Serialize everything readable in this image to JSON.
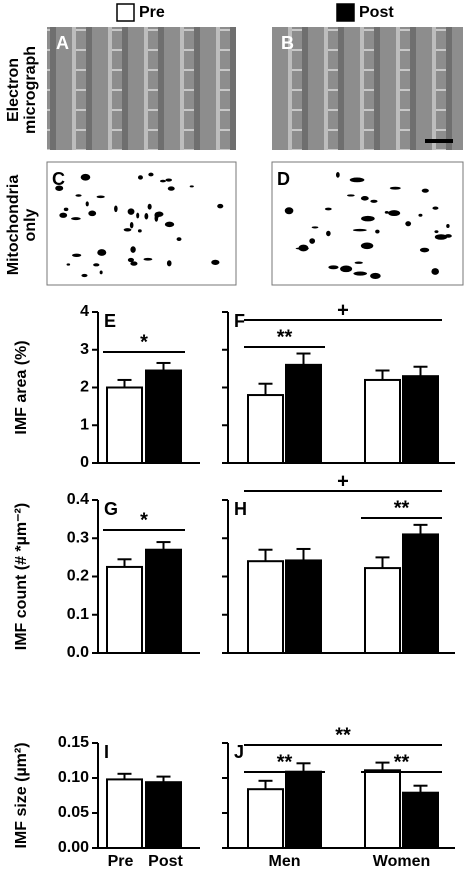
{
  "legend": [
    {
      "name": "Pre",
      "color": "#ffffff"
    },
    {
      "name": "Post",
      "color": "#000000"
    }
  ],
  "row_labels": [
    [
      "Electron",
      "micrograph"
    ],
    [
      "Mitochondria",
      "only"
    ]
  ],
  "image_panels": [
    "A",
    "B",
    "C",
    "D"
  ],
  "chart_data": [
    {
      "type": "bar",
      "panel": "E",
      "ylabel": "IMF area (%)",
      "ylim": [
        0,
        4
      ],
      "yticks": [
        0,
        1,
        2,
        3,
        4
      ],
      "show_tick_labels": true,
      "categories": [
        null,
        null
      ],
      "values": [
        2.0,
        2.45
      ],
      "errors": [
        0.2,
        0.2
      ],
      "colors": [
        "#ffffff",
        "#000000"
      ],
      "annotations": [
        "*"
      ]
    },
    {
      "type": "grouped_bar",
      "panel": "F",
      "ylim": [
        0,
        4
      ],
      "yticks": [
        0,
        1,
        2,
        3,
        4
      ],
      "show_tick_labels": false,
      "categories": [
        null,
        null
      ],
      "series": [
        {
          "color": "#ffffff",
          "values": [
            1.8,
            2.2
          ],
          "errors": [
            0.3,
            0.25
          ]
        },
        {
          "color": "#000000",
          "values": [
            2.6,
            2.3
          ],
          "errors": [
            0.3,
            0.25
          ]
        }
      ],
      "annotations": [
        "**",
        "+"
      ]
    },
    {
      "type": "bar",
      "panel": "G",
      "ylabel": "IMF count (# *µm⁻²)",
      "ylim": [
        0,
        0.4
      ],
      "yticks": [
        {
          "value": 0,
          "label": "0.0"
        },
        0.1,
        0.2,
        0.3,
        0.4
      ],
      "show_tick_labels": true,
      "categories": [
        null,
        null
      ],
      "values": [
        0.225,
        0.27
      ],
      "errors": [
        0.02,
        0.02
      ],
      "colors": [
        "#ffffff",
        "#000000"
      ],
      "annotations": [
        "*"
      ]
    },
    {
      "type": "grouped_bar",
      "panel": "H",
      "ylim": [
        0,
        0.4
      ],
      "yticks": [
        0,
        0.1,
        0.2,
        0.3,
        0.4
      ],
      "show_tick_labels": false,
      "categories": [
        null,
        null
      ],
      "series": [
        {
          "color": "#ffffff",
          "values": [
            0.24,
            0.222
          ],
          "errors": [
            0.03,
            0.028
          ]
        },
        {
          "color": "#000000",
          "values": [
            0.242,
            0.31
          ],
          "errors": [
            0.03,
            0.025
          ]
        }
      ],
      "annotations": [
        "**",
        "+"
      ]
    },
    {
      "type": "bar",
      "panel": "I",
      "ylabel": "IMF size (µm²)",
      "ylim": [
        0,
        0.15
      ],
      "yticks": [
        {
          "value": 0,
          "label": "0.00"
        },
        0.05,
        {
          "value": 0.1,
          "label": "0.10"
        },
        0.15
      ],
      "show_tick_labels": true,
      "categories": [
        "Pre",
        "Post"
      ],
      "values": [
        0.098,
        0.094
      ],
      "errors": [
        0.008,
        0.008
      ],
      "colors": [
        "#ffffff",
        "#000000"
      ],
      "annotations": []
    },
    {
      "type": "grouped_bar",
      "panel": "J",
      "ylim": [
        0,
        0.15
      ],
      "yticks": [
        0,
        0.05,
        0.1,
        0.15
      ],
      "show_tick_labels": false,
      "categories": [
        "Men",
        "Women"
      ],
      "series": [
        {
          "color": "#ffffff",
          "values": [
            0.084,
            0.111
          ],
          "errors": [
            0.012,
            0.011
          ]
        },
        {
          "color": "#000000",
          "values": [
            0.109,
            0.079
          ],
          "errors": [
            0.012,
            0.01
          ]
        }
      ],
      "annotations": [
        "**",
        "**",
        "**"
      ]
    }
  ]
}
